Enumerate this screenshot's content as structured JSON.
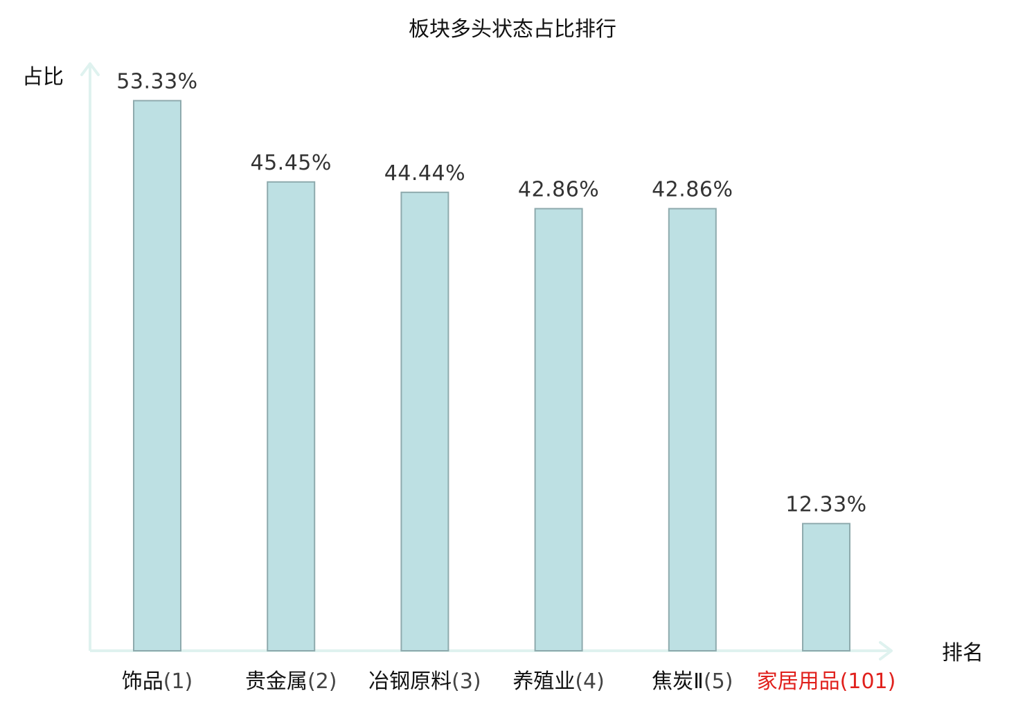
{
  "colors": {
    "bar_fill": "#bde0e3",
    "bar_stroke": "#8eaaad",
    "axis": "#dff2ef",
    "label_text": "#111111",
    "rank_text": "#444444",
    "highlight": "#e0201c"
  },
  "chart_data": {
    "type": "bar",
    "title": "板块多头状态占比排行",
    "ylabel": "占比",
    "xlabel": "排名",
    "ylim": [
      0,
      60
    ],
    "grid": false,
    "legend": "none",
    "categories": [
      {
        "name": "饰品",
        "rank": "(1)",
        "highlight": false
      },
      {
        "name": "贵金属",
        "rank": "(2)",
        "highlight": false
      },
      {
        "name": "冶钢原料",
        "rank": "(3)",
        "highlight": false
      },
      {
        "name": "养殖业",
        "rank": "(4)",
        "highlight": false
      },
      {
        "name": "焦炭Ⅱ",
        "rank": "(5)",
        "highlight": false
      },
      {
        "name": "家居用品",
        "rank": "(101)",
        "highlight": true
      }
    ],
    "values": [
      53.33,
      45.45,
      44.44,
      42.86,
      42.86,
      12.33
    ],
    "value_labels": [
      "53.33%",
      "45.45%",
      "44.44%",
      "42.86%",
      "42.86%",
      "12.33%"
    ]
  }
}
